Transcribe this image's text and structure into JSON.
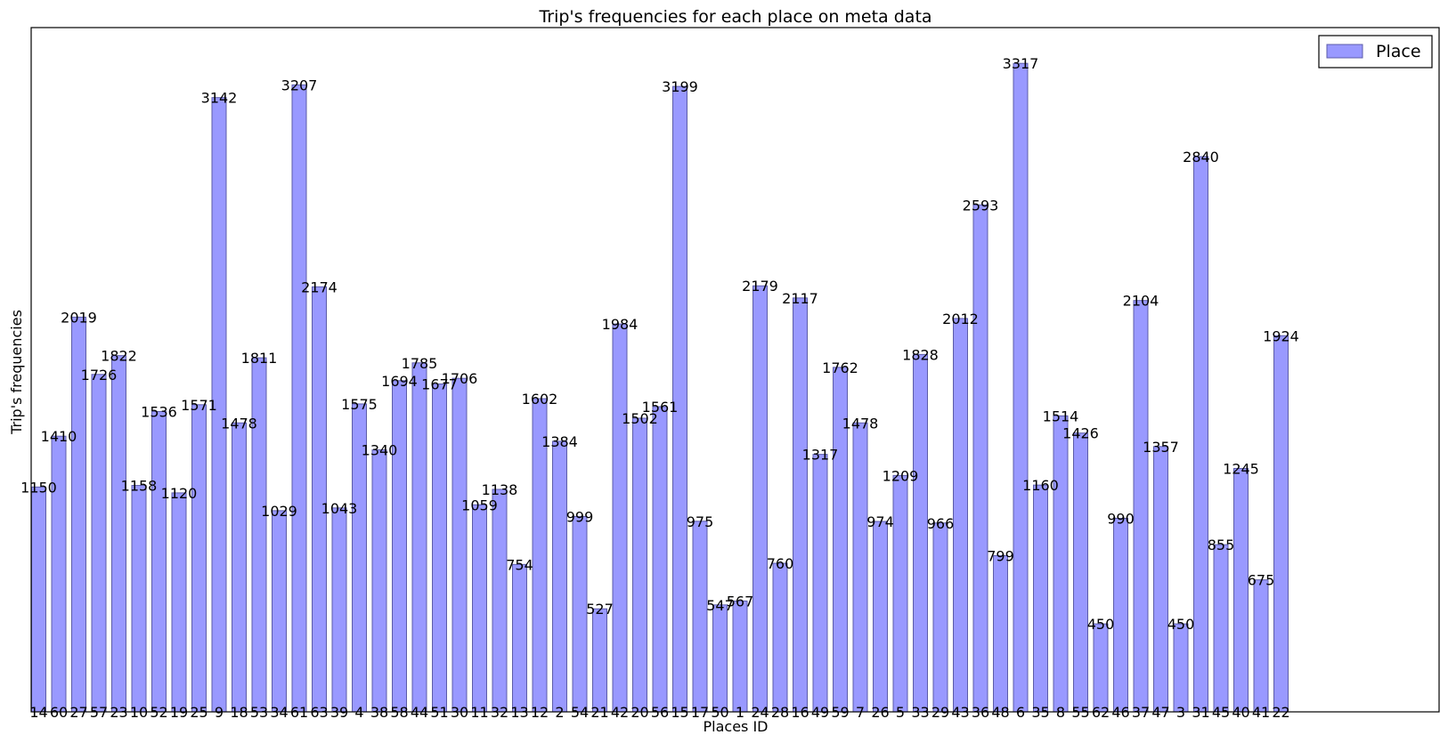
{
  "chart_data": {
    "type": "bar",
    "title": "Trip's frequencies for each place on meta data",
    "xlabel": "Places ID",
    "ylabel": "Trip's frequencies",
    "ylim": [
      0,
      3500
    ],
    "grid": false,
    "legend": {
      "position": "top-right",
      "entries": [
        "Place"
      ]
    },
    "bar_color": "#9999ff",
    "bar_edge_color": "#5c5ca8",
    "categories": [
      "14",
      "60",
      "27",
      "57",
      "23",
      "10",
      "52",
      "19",
      "25",
      "9",
      "18",
      "53",
      "34",
      "61",
      "63",
      "39",
      "4",
      "38",
      "58",
      "44",
      "51",
      "30",
      "11",
      "32",
      "13",
      "12",
      "2",
      "54",
      "21",
      "42",
      "20",
      "56",
      "15",
      "17",
      "50",
      "1",
      "24",
      "28",
      "16",
      "49",
      "59",
      "7",
      "26",
      "5",
      "33",
      "29",
      "43",
      "36",
      "48",
      "6",
      "35",
      "8",
      "55",
      "62",
      "46",
      "37",
      "47",
      "3",
      "31",
      "45",
      "40",
      "41",
      "22"
    ],
    "series": [
      {
        "name": "Place",
        "values": [
          1150,
          1410,
          2019,
          1726,
          1822,
          1158,
          1536,
          1120,
          1571,
          3142,
          1478,
          1811,
          1029,
          3207,
          2174,
          1043,
          1575,
          1340,
          1694,
          1785,
          1677,
          1706,
          1059,
          1138,
          754,
          1602,
          1384,
          999,
          527,
          1984,
          1502,
          1561,
          3199,
          975,
          547,
          567,
          2179,
          760,
          2117,
          1317,
          1762,
          1478,
          974,
          1209,
          1828,
          966,
          2012,
          2593,
          799,
          3317,
          1160,
          1514,
          1426,
          450,
          990,
          2104,
          1357,
          450,
          2840,
          855,
          1245,
          675,
          1924
        ]
      }
    ]
  }
}
